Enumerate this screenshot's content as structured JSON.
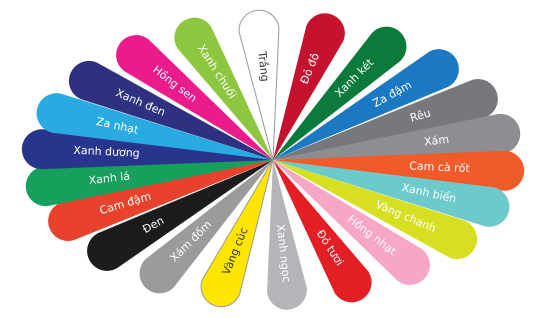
{
  "swatches": [
    {
      "label": "Trắng",
      "color": "#ffffff"
    },
    {
      "label": "Đỏ đô",
      "color": "#c4122f"
    },
    {
      "label": "Xanh két",
      "color": "#0b7a3b"
    },
    {
      "label": "Za đậm",
      "color": "#1b78c2"
    },
    {
      "label": "Rêu",
      "color": "#77787b"
    },
    {
      "label": "Xám",
      "color": "#8c8e91"
    },
    {
      "label": "Cam cà rốt",
      "color": "#f15a29"
    },
    {
      "label": "Xanh biển",
      "color": "#6ccaca"
    },
    {
      "label": "Vàng chanh",
      "color": "#d7df23"
    },
    {
      "label": "Hồng nhạt",
      "color": "#f6a6c6"
    },
    {
      "label": "Đỏ tươi",
      "color": "#e31e24"
    },
    {
      "label": "Xanh ngọc",
      "color": "#b3b5b8"
    },
    {
      "label": "Vàng cúc",
      "color": "#ffe500"
    },
    {
      "label": "Xám đốm",
      "color": "#9b9b9b"
    },
    {
      "label": "Đen",
      "color": "#1c1c1c"
    },
    {
      "label": "Cam đậm",
      "color": "#e8412c"
    },
    {
      "label": "Xanh lá",
      "color": "#17a05b"
    },
    {
      "label": "Xanh dương",
      "color": "#28358c"
    },
    {
      "label": "Za nhạt",
      "color": "#29abe2"
    },
    {
      "label": "Xanh đen",
      "color": "#2e3180"
    },
    {
      "label": "Hồng sen",
      "color": "#ec1b8c"
    },
    {
      "label": "Xanh chuối",
      "color": "#8dc63f"
    }
  ]
}
